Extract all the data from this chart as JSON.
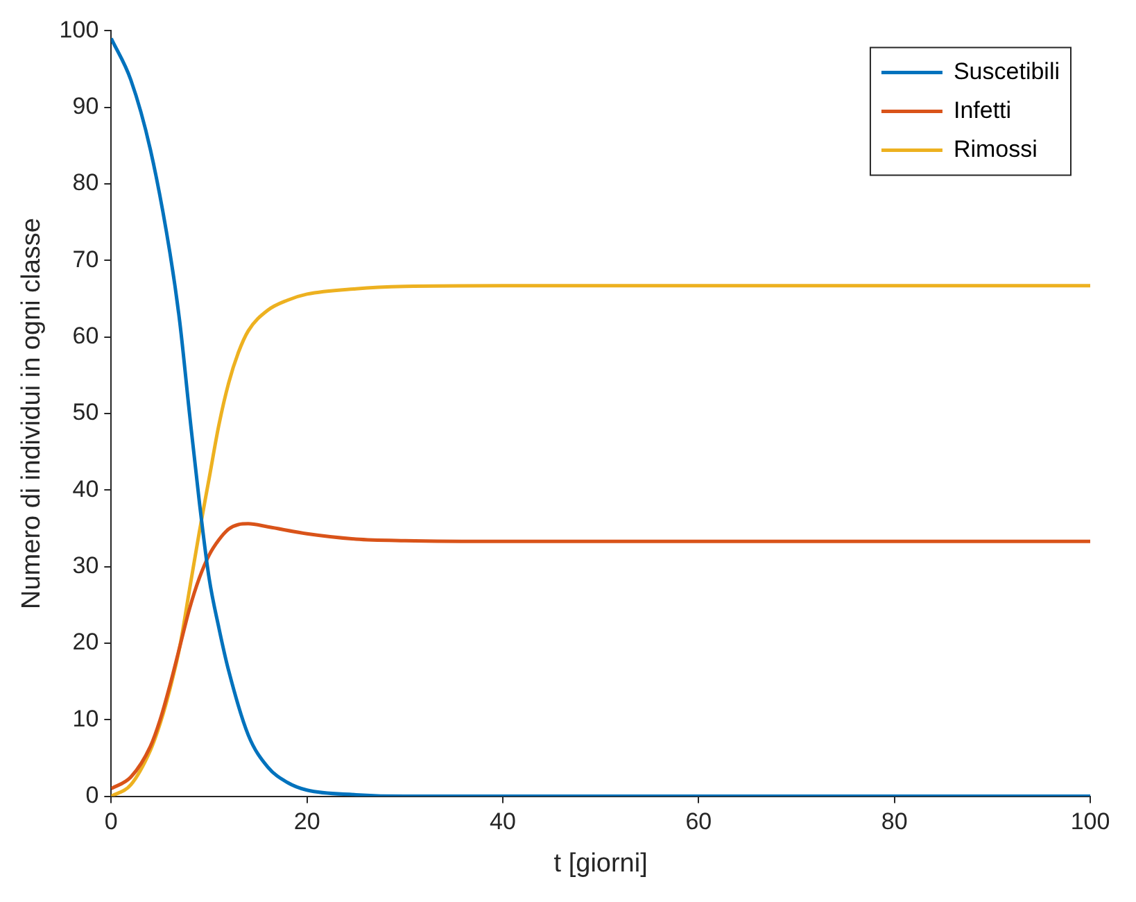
{
  "chart_data": {
    "type": "line",
    "xlabel": "t [giorni]",
    "ylabel": "Numero di individui in ogni classe",
    "xlim": [
      0,
      100
    ],
    "xticks": [
      0,
      20,
      40,
      60,
      80,
      100
    ],
    "ylim": [
      0,
      100
    ],
    "yticks": [
      0,
      10,
      20,
      30,
      40,
      50,
      60,
      70,
      80,
      90,
      100
    ],
    "grid": false,
    "legend": "top right",
    "marker": "none",
    "line_style": "solid",
    "series": [
      {
        "name": "Suscetibili",
        "color": "#0072bd",
        "x": [
          0,
          2,
          4,
          6,
          7,
          8,
          9,
          10,
          11,
          12,
          14,
          16,
          18,
          20,
          25,
          30,
          40,
          100
        ],
        "values": [
          99,
          93.6,
          84.5,
          71,
          62,
          50,
          38.5,
          28.5,
          22,
          16.4,
          8,
          3.8,
          1.8,
          0.8,
          0.2,
          0,
          0,
          0
        ]
      },
      {
        "name": "Infetti",
        "color": "#d95319",
        "x": [
          0,
          2,
          4,
          5,
          6,
          7,
          8,
          9,
          10,
          11,
          12,
          13,
          14,
          16,
          20,
          25,
          30,
          40,
          100
        ],
        "values": [
          1,
          2.5,
          6.5,
          10,
          14.5,
          19.5,
          24.5,
          28.5,
          31.5,
          33.5,
          34.9,
          35.5,
          35.6,
          35.2,
          34.3,
          33.6,
          33.4,
          33.3,
          33.3
        ]
      },
      {
        "name": "Rimossi",
        "color": "#edb120",
        "x": [
          0,
          2,
          4,
          5,
          6,
          7,
          8,
          9,
          10,
          11,
          12,
          13,
          14,
          16,
          18,
          20,
          25,
          30,
          40,
          100
        ],
        "values": [
          0,
          1.5,
          6,
          9.5,
          14,
          19.5,
          27,
          34.5,
          41.5,
          48.5,
          54,
          58,
          60.8,
          63.5,
          64.8,
          65.6,
          66.3,
          66.6,
          66.7,
          66.7
        ]
      }
    ]
  }
}
